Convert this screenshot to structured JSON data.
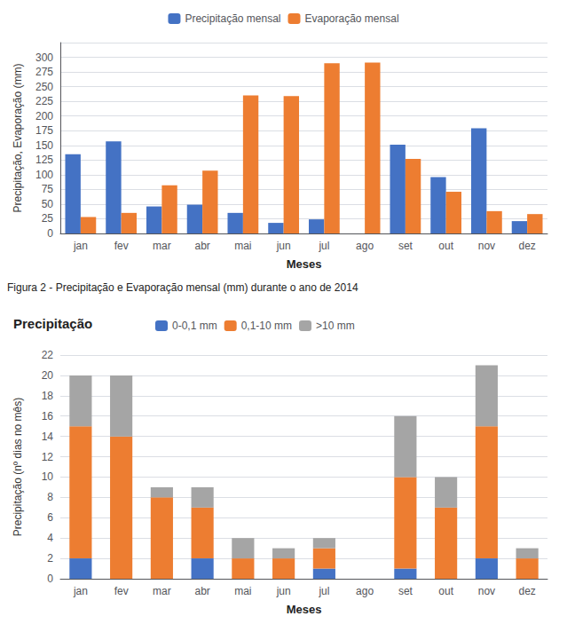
{
  "chart_data": [
    {
      "type": "bar",
      "categories": [
        "jan",
        "fev",
        "mar",
        "abr",
        "mai",
        "jun",
        "jul",
        "ago",
        "set",
        "out",
        "nov",
        "dez"
      ],
      "series": [
        {
          "name": "Precipitação mensal",
          "color": "#4472C4",
          "values": [
            135,
            157,
            46,
            49,
            35,
            18,
            24,
            0,
            151,
            96,
            179,
            21
          ]
        },
        {
          "name": "Evaporação mensal",
          "color": "#ED7D31",
          "values": [
            28,
            35,
            82,
            107,
            235,
            234,
            290,
            291,
            127,
            71,
            38,
            33
          ]
        }
      ],
      "xlabel": "Meses",
      "ylabel": "Precipitação, Evaporação (mm)",
      "ylim": [
        0,
        325
      ],
      "yticks": [
        0,
        25,
        50,
        75,
        100,
        125,
        150,
        175,
        200,
        225,
        250,
        275,
        300
      ],
      "grid": true,
      "legend": "top",
      "annotations": [
        "Figura 2 - Precipitação e Evaporação mensal (mm) durante o ano de 2014"
      ]
    },
    {
      "type": "bar",
      "title": "Precipitação",
      "categories": [
        "jan",
        "fev",
        "mar",
        "abr",
        "mai",
        "jun",
        "jul",
        "ago",
        "set",
        "out",
        "nov",
        "dez"
      ],
      "series": [
        {
          "name": "0-0,1 mm",
          "color": "#4472C4",
          "values": [
            2,
            0,
            0,
            2,
            0,
            0,
            1,
            0,
            1,
            0,
            2,
            0
          ]
        },
        {
          "name": "0,1-10 mm",
          "color": "#ED7D31",
          "values": [
            13,
            14,
            8,
            5,
            2,
            2,
            2,
            0,
            9,
            7,
            13,
            2
          ]
        },
        {
          "name": ">10 mm",
          "color": "#A5A5A5",
          "values": [
            5,
            6,
            1,
            2,
            2,
            1,
            1,
            0,
            6,
            3,
            6,
            1
          ]
        }
      ],
      "stacked": true,
      "xlabel": "Meses",
      "ylabel": "Precipitação (nº dias no mês)",
      "ylim": [
        0,
        22
      ],
      "yticks": [
        0,
        2,
        4,
        6,
        8,
        10,
        12,
        14,
        16,
        18,
        20,
        22
      ],
      "grid": true,
      "legend": "top"
    }
  ]
}
